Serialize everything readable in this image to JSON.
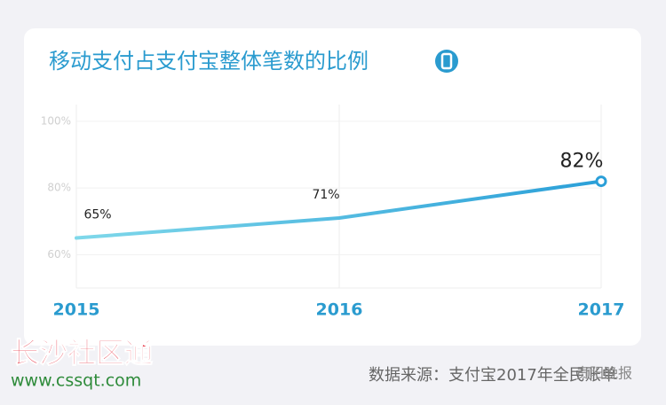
{
  "chart_data": {
    "type": "line",
    "title": "移动支付占支付宝整体笔数的比例",
    "categories": [
      "2015",
      "2016",
      "2017"
    ],
    "values": [
      65,
      71,
      82
    ],
    "value_labels": [
      "65%",
      "71%",
      "82%"
    ],
    "color": "#2a9fd8",
    "ylim": [
      50,
      105
    ],
    "yticks": [
      {
        "value": 60,
        "label": "60%"
      },
      {
        "value": 80,
        "label": "80%"
      },
      {
        "value": 100,
        "label": "100%"
      }
    ],
    "grid": true
  },
  "footer": {
    "source": "数据来源：支付宝2017年全民账单",
    "watermark": "长沙社区通",
    "watermark_url": "www.cssqt.com",
    "publisher": "贵阳晚报"
  }
}
